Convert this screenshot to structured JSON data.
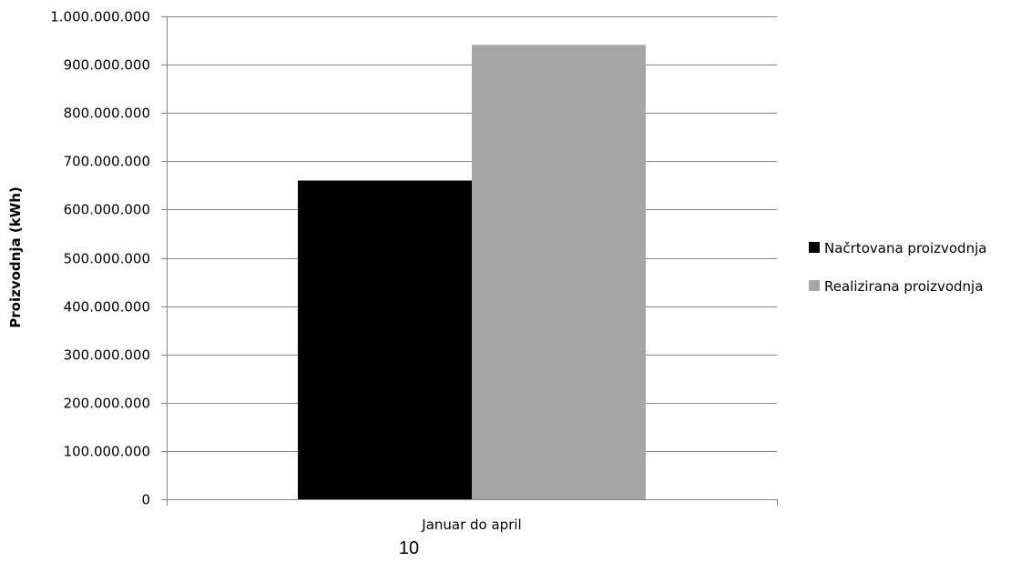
{
  "chart_data": {
    "type": "bar",
    "categories": [
      "Januar do april"
    ],
    "series": [
      {
        "name": "Načrtovana proizvodnja",
        "values": [
          660000000
        ],
        "color": "#000000"
      },
      {
        "name": "Realizirana proizvodnja",
        "values": [
          941000000
        ],
        "color": "#a6a6a6"
      }
    ],
    "ylabel": "Proizvodnja (kWh)",
    "xlabel": "",
    "ylim": [
      0,
      1000000000
    ],
    "yticks": [
      0,
      100000000,
      200000000,
      300000000,
      400000000,
      500000000,
      600000000,
      700000000,
      800000000,
      900000000,
      1000000000
    ],
    "ytick_labels": [
      "0",
      "100.000.000",
      "200.000.000",
      "300.000.000",
      "400.000.000",
      "500.000.000",
      "600.000.000",
      "700.000.000",
      "800.000.000",
      "900.000.000",
      "1.000.000.000"
    ],
    "grid": true,
    "gridline_color": "#868686",
    "legend_position": "right"
  },
  "page_number": "10"
}
